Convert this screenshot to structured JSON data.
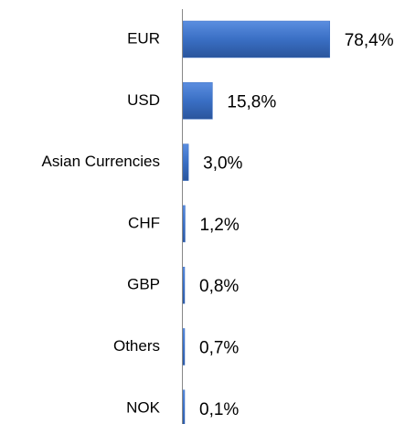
{
  "chart_data": {
    "type": "bar",
    "orientation": "horizontal",
    "categories": [
      "EUR",
      "USD",
      "Asian Currencies",
      "CHF",
      "GBP",
      "Others",
      "NOK"
    ],
    "values": [
      78.4,
      15.8,
      3.0,
      1.2,
      0.8,
      0.7,
      0.1
    ],
    "value_labels": [
      "78,4%",
      "15,8%",
      "3,0%",
      "1,2%",
      "0,8%",
      "0,7%",
      "0,1%"
    ],
    "color": "#3a6fc4"
  }
}
